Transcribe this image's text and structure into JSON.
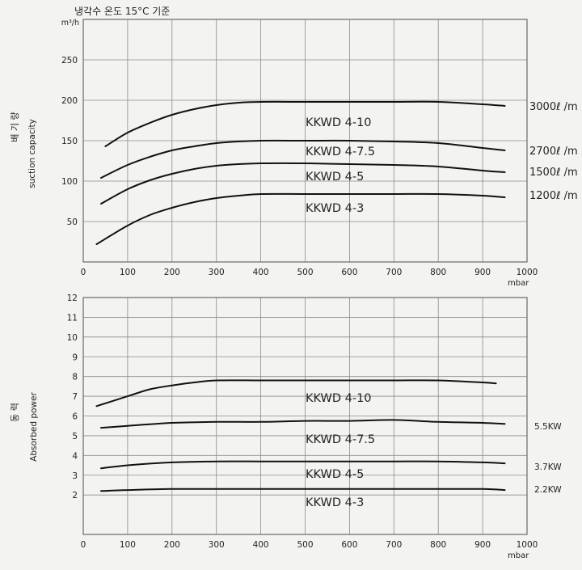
{
  "header_note": "냉각수 온도 15°C 기준",
  "chart_data": [
    {
      "type": "line",
      "ylabel_korean": "배 기 량",
      "ylabel": "suction capacity",
      "yunit": "m³/h",
      "xunit": "mbar",
      "xlim": [
        0,
        1000
      ],
      "ylim": [
        0,
        300
      ],
      "xticks": [
        0,
        100,
        200,
        300,
        400,
        500,
        600,
        700,
        800,
        900,
        1000
      ],
      "yticks": [
        50,
        100,
        150,
        200,
        250
      ],
      "grid": true,
      "series": [
        {
          "name": "KKWD 4-10",
          "end_label": "3000ℓ /m",
          "x": [
            50,
            100,
            150,
            200,
            250,
            300,
            350,
            400,
            500,
            600,
            700,
            800,
            900,
            950
          ],
          "y": [
            143,
            160,
            172,
            182,
            189,
            194,
            197,
            198,
            198,
            198,
            198,
            198,
            195,
            193
          ]
        },
        {
          "name": "KKWD 4-7.5",
          "end_label": "2700ℓ /m",
          "x": [
            40,
            100,
            150,
            200,
            250,
            300,
            350,
            400,
            500,
            600,
            700,
            800,
            900,
            950
          ],
          "y": [
            104,
            120,
            130,
            138,
            143,
            147,
            149,
            150,
            150,
            150,
            149,
            147,
            141,
            138
          ]
        },
        {
          "name": "KKWD 4-5",
          "end_label": "1500ℓ /m",
          "x": [
            40,
            100,
            150,
            200,
            250,
            300,
            350,
            400,
            500,
            600,
            700,
            800,
            900,
            950
          ],
          "y": [
            72,
            90,
            101,
            109,
            115,
            119,
            121,
            122,
            122,
            121,
            120,
            118,
            113,
            111
          ]
        },
        {
          "name": "KKWD 4-3",
          "end_label": "1200ℓ /m",
          "x": [
            30,
            100,
            150,
            200,
            250,
            300,
            350,
            400,
            500,
            600,
            700,
            800,
            900,
            950
          ],
          "y": [
            22,
            45,
            58,
            67,
            74,
            79,
            82,
            84,
            84,
            84,
            84,
            84,
            82,
            80
          ]
        }
      ]
    },
    {
      "type": "line",
      "ylabel_korean": "동 력",
      "ylabel": "Absorbed power",
      "xunit": "mbar",
      "xlim": [
        0,
        1000
      ],
      "ylim": [
        0,
        12
      ],
      "xticks": [
        0,
        100,
        200,
        300,
        400,
        500,
        600,
        700,
        800,
        900,
        1000
      ],
      "yticks": [
        2,
        3,
        4,
        5,
        6,
        7,
        8,
        9,
        10,
        11,
        12
      ],
      "grid": true,
      "series": [
        {
          "name": "KKWD 4-10",
          "end_label": "",
          "x": [
            30,
            100,
            150,
            200,
            250,
            300,
            400,
            500,
            600,
            700,
            800,
            900,
            930
          ],
          "y": [
            6.5,
            7.0,
            7.35,
            7.55,
            7.7,
            7.8,
            7.8,
            7.8,
            7.8,
            7.8,
            7.8,
            7.7,
            7.65
          ]
        },
        {
          "name": "KKWD 4-7.5",
          "end_label": "5.5KW",
          "x": [
            40,
            100,
            200,
            300,
            400,
            500,
            600,
            700,
            800,
            900,
            950
          ],
          "y": [
            5.4,
            5.5,
            5.65,
            5.7,
            5.7,
            5.75,
            5.75,
            5.8,
            5.7,
            5.65,
            5.6
          ]
        },
        {
          "name": "KKWD 4-5",
          "end_label": "3.7KW",
          "x": [
            40,
            100,
            200,
            300,
            400,
            500,
            600,
            700,
            800,
            900,
            950
          ],
          "y": [
            3.35,
            3.5,
            3.65,
            3.7,
            3.7,
            3.7,
            3.7,
            3.7,
            3.7,
            3.65,
            3.6
          ]
        },
        {
          "name": "KKWD 4-3",
          "end_label": "2.2KW",
          "x": [
            40,
            100,
            200,
            300,
            400,
            500,
            600,
            700,
            800,
            900,
            950
          ],
          "y": [
            2.2,
            2.25,
            2.3,
            2.3,
            2.3,
            2.3,
            2.3,
            2.3,
            2.3,
            2.3,
            2.25
          ]
        }
      ]
    }
  ]
}
